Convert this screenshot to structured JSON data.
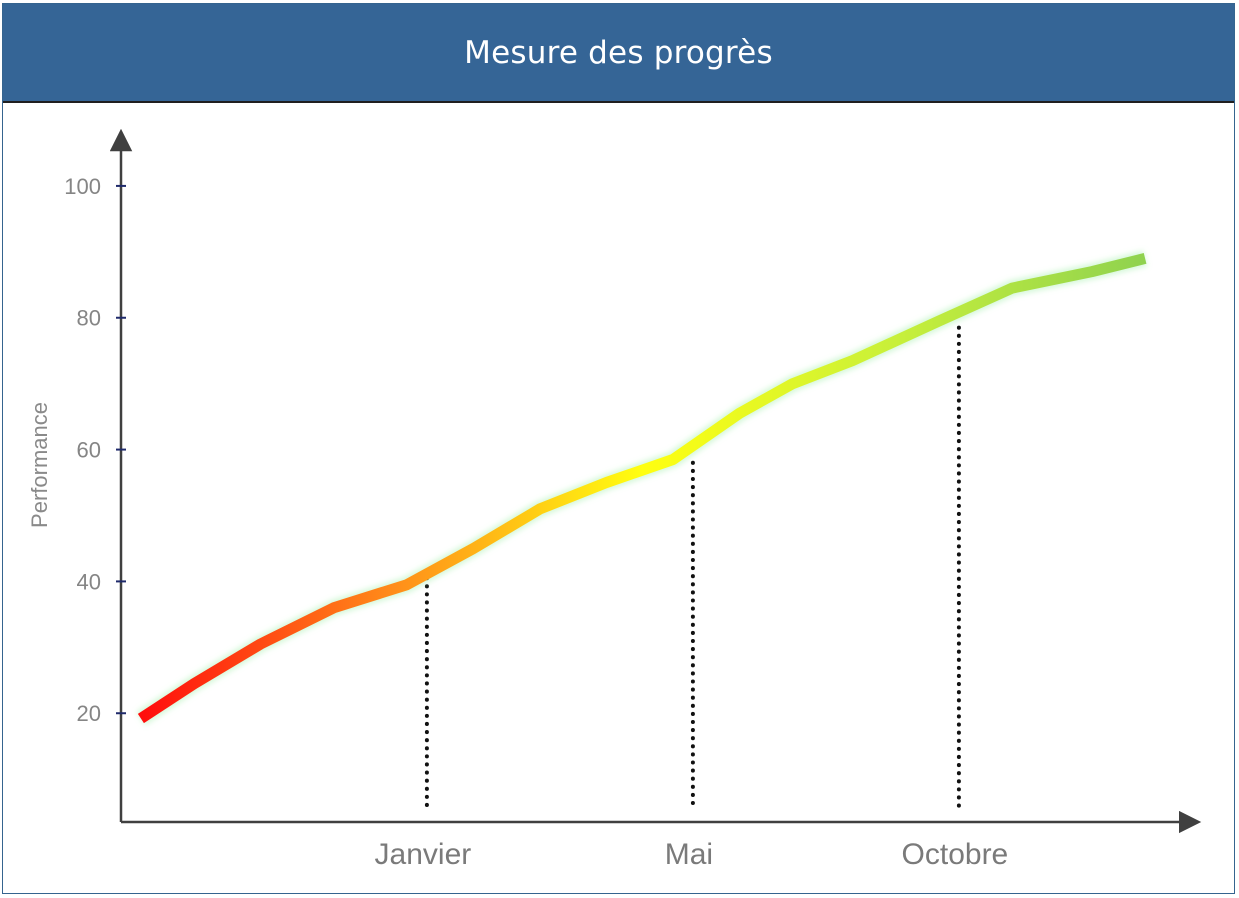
{
  "header": {
    "title": "Mesure des progrès"
  },
  "chart_data": {
    "type": "line",
    "title": "Mesure des progrès",
    "ylabel": "Performance",
    "xlabel": "",
    "yticks": [
      20,
      40,
      60,
      80,
      100
    ],
    "ylim": [
      3.5,
      110
    ],
    "xlim": [
      0,
      16
    ],
    "x": [
      0.3,
      1.1,
      2.1,
      3.2,
      4.3,
      5.3,
      6.3,
      7.3,
      8.3,
      9.3,
      10.1,
      11.0,
      12.3,
      13.4,
      14.6,
      15.4
    ],
    "y": [
      19.2,
      24.5,
      30.5,
      36,
      39.5,
      45,
      51,
      55,
      58.5,
      65.5,
      70,
      73.5,
      79.5,
      84.5,
      87,
      89
    ],
    "markers": [
      {
        "label": "Janvier",
        "x": 4.6,
        "y": 40.5
      },
      {
        "label": "Mai",
        "x": 8.6,
        "y": 58
      },
      {
        "label": "Octobre",
        "x": 12.6,
        "y": 78.5
      }
    ],
    "gradient_colors": [
      "#ff0d0d",
      "#ff8c1a",
      "#ffff10",
      "#c8f03a",
      "#8fd24f"
    ],
    "grid": false,
    "legend": "none"
  }
}
